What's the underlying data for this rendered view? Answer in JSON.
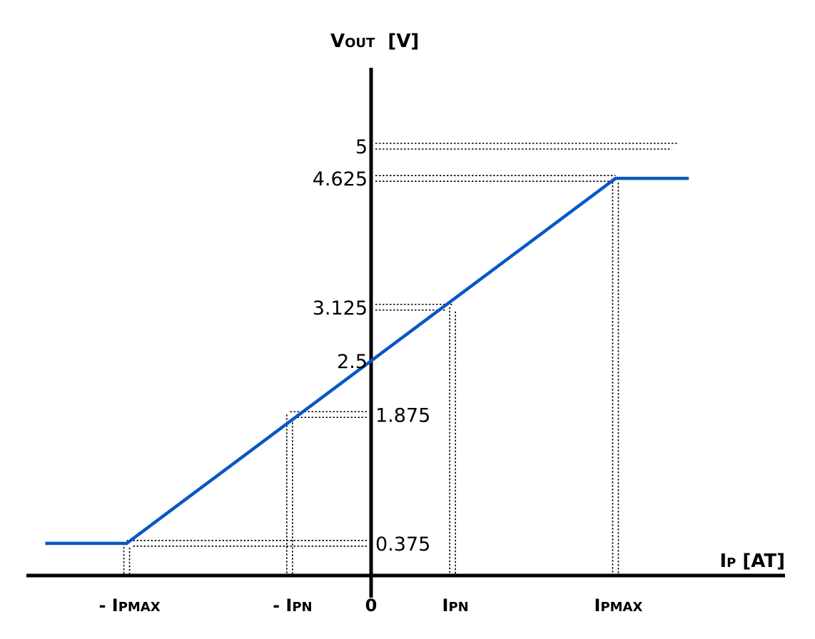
{
  "chart_data": {
    "type": "line",
    "title": "",
    "xlabel": {
      "main": "I",
      "sub": "P",
      "unit": " [AT]"
    },
    "ylabel": {
      "main": "V",
      "sub": "OUT",
      "unit": "  [V]"
    },
    "x_ticks": [
      {
        "key": "neg_ipmax",
        "x": -1.5,
        "prefix": "- I",
        "sub": "PMAX"
      },
      {
        "key": "neg_ipn",
        "x": -0.5,
        "prefix": "- I",
        "sub": "PN"
      },
      {
        "key": "zero",
        "x": 0,
        "prefix": "0",
        "sub": ""
      },
      {
        "key": "ipn",
        "x": 0.5,
        "prefix": "I",
        "sub": "PN"
      },
      {
        "key": "ipmax",
        "x": 1.5,
        "prefix": "I",
        "sub": "PMAX"
      }
    ],
    "y_ticks": [
      {
        "value": 5,
        "label": "5",
        "side": "left"
      },
      {
        "value": 4.625,
        "label": "4.625",
        "side": "left"
      },
      {
        "value": 3.125,
        "label": "3.125",
        "side": "left"
      },
      {
        "value": 2.5,
        "label": "2.5",
        "side": "left"
      },
      {
        "value": 1.875,
        "label": "1.875",
        "side": "right"
      },
      {
        "value": 0.375,
        "label": "0.375",
        "side": "right"
      }
    ],
    "series": [
      {
        "name": "Vout",
        "color": "#0a57c4",
        "points": [
          [
            -2.0,
            0.375
          ],
          [
            -1.5,
            0.375
          ],
          [
            1.5,
            4.625
          ],
          [
            1.95,
            4.625
          ]
        ]
      }
    ],
    "guides": [
      {
        "x": -1.5,
        "y": 0.375
      },
      {
        "x": -0.5,
        "y": 1.875
      },
      {
        "x": 0.5,
        "y": 3.125
      },
      {
        "x": 1.5,
        "y": 4.625
      },
      {
        "x": 1.88,
        "y": 5
      }
    ],
    "xlim": [
      -2.0,
      2.4
    ],
    "ylim": [
      0,
      5.8
    ]
  }
}
